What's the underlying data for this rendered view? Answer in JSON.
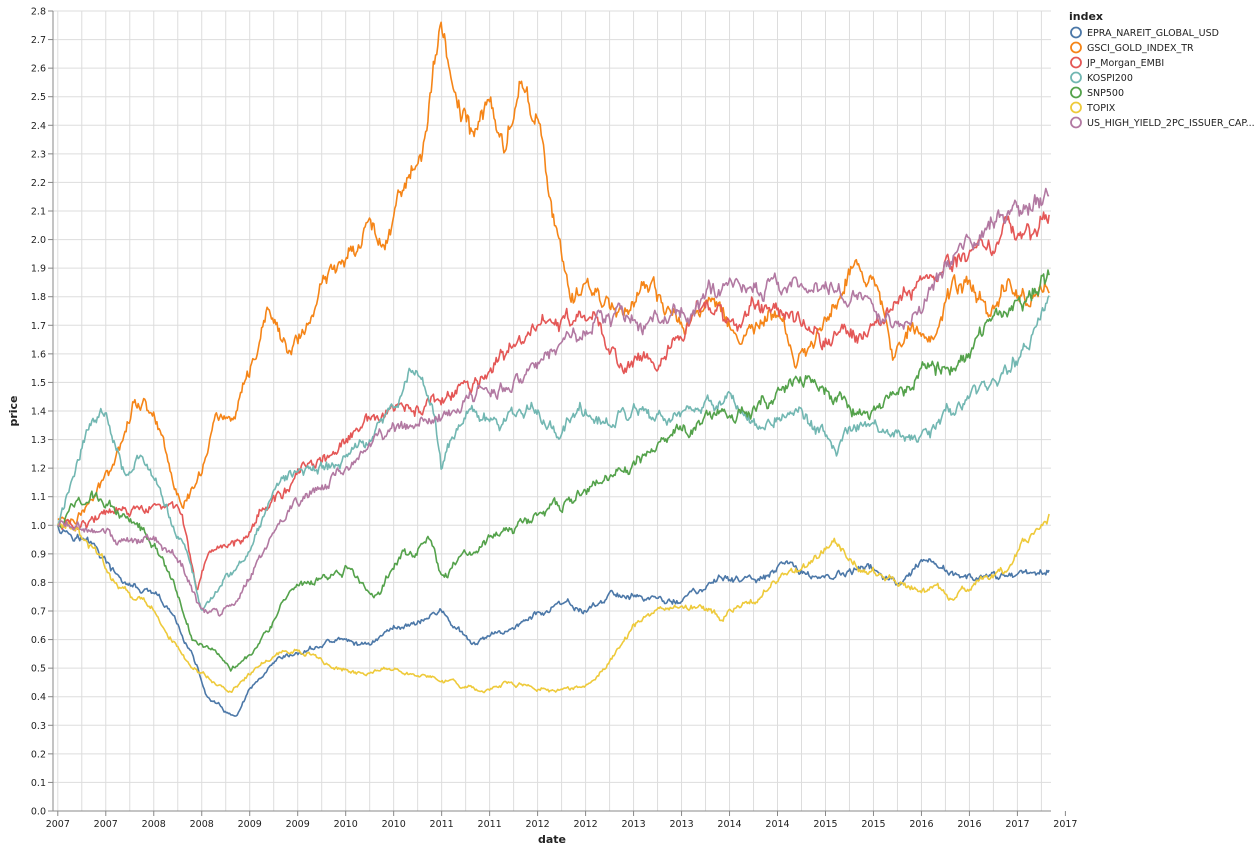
{
  "chart_data": {
    "type": "line",
    "xlabel": "date",
    "ylabel": "price",
    "ylim": [
      0,
      2.8
    ],
    "y_ticks": [
      "0.0",
      "0.1",
      "0.2",
      "0.3",
      "0.4",
      "0.5",
      "0.6",
      "0.7",
      "0.8",
      "0.9",
      "1.0",
      "1.1",
      "1.2",
      "1.3",
      "1.4",
      "1.5",
      "1.6",
      "1.7",
      "1.8",
      "1.9",
      "2.0",
      "2.1",
      "2.2",
      "2.3",
      "2.4",
      "2.5",
      "2.6",
      "2.7",
      "2.8"
    ],
    "x_ticks": [
      "2007",
      "2007",
      "2008",
      "2008",
      "2009",
      "2009",
      "2010",
      "2010",
      "2011",
      "2011",
      "2012",
      "2012",
      "2013",
      "2013",
      "2014",
      "2014",
      "2015",
      "2015",
      "2016",
      "2016",
      "2017",
      "2017"
    ],
    "xlim": [
      2006.95,
      2017.35
    ],
    "grid": true,
    "legend": {
      "title": "index",
      "position": "top-right"
    },
    "series": [
      {
        "name": "EPRA_NAREIT_GLOBAL_USD",
        "color": "#4c78a8",
        "x": [
          2007.0,
          2007.2,
          2007.4,
          2007.6,
          2007.8,
          2008.0,
          2008.2,
          2008.4,
          2008.55,
          2008.7,
          2008.85,
          2009.0,
          2009.3,
          2009.6,
          2009.9,
          2010.2,
          2010.5,
          2010.8,
          2011.0,
          2011.3,
          2011.6,
          2011.9,
          2012.2,
          2012.5,
          2012.8,
          2013.1,
          2013.4,
          2013.7,
          2014.0,
          2014.3,
          2014.6,
          2014.9,
          2015.2,
          2015.5,
          2015.8,
          2016.0,
          2016.3,
          2016.6,
          2016.9,
          2017.2,
          2017.33
        ],
        "y": [
          1.0,
          0.97,
          0.92,
          0.82,
          0.78,
          0.75,
          0.68,
          0.55,
          0.4,
          0.36,
          0.32,
          0.42,
          0.52,
          0.56,
          0.6,
          0.58,
          0.64,
          0.67,
          0.7,
          0.58,
          0.62,
          0.67,
          0.72,
          0.7,
          0.76,
          0.75,
          0.73,
          0.77,
          0.82,
          0.8,
          0.86,
          0.82,
          0.83,
          0.85,
          0.78,
          0.86,
          0.84,
          0.8,
          0.83,
          0.84,
          0.85
        ]
      },
      {
        "name": "GSCI_GOLD_INDEX_TR",
        "color": "#f58518",
        "x": [
          2007.0,
          2007.2,
          2007.4,
          2007.6,
          2007.8,
          2008.0,
          2008.1,
          2008.3,
          2008.5,
          2008.65,
          2008.8,
          2009.0,
          2009.2,
          2009.4,
          2009.6,
          2009.8,
          2010.0,
          2010.2,
          2010.4,
          2010.6,
          2010.8,
          2011.0,
          2011.2,
          2011.35,
          2011.5,
          2011.65,
          2011.8,
          2012.0,
          2012.2,
          2012.35,
          2012.5,
          2012.7,
          2012.9,
          2013.1,
          2013.3,
          2013.5,
          2013.7,
          2013.9,
          2014.1,
          2014.3,
          2014.5,
          2014.7,
          2014.9,
          2015.1,
          2015.3,
          2015.5,
          2015.7,
          2015.9,
          2016.1,
          2016.3,
          2016.5,
          2016.7,
          2016.9,
          2017.1,
          2017.33
        ],
        "y": [
          1.02,
          1.03,
          1.1,
          1.25,
          1.45,
          1.4,
          1.3,
          1.05,
          1.2,
          1.4,
          1.35,
          1.5,
          1.75,
          1.6,
          1.7,
          1.85,
          1.95,
          2.05,
          2.0,
          2.2,
          2.3,
          2.75,
          2.45,
          2.35,
          2.5,
          2.3,
          2.55,
          2.45,
          2.0,
          1.75,
          1.85,
          1.8,
          1.75,
          1.85,
          1.75,
          1.7,
          1.75,
          1.8,
          1.65,
          1.7,
          1.75,
          1.55,
          1.65,
          1.78,
          1.95,
          1.85,
          1.6,
          1.75,
          1.65,
          1.8,
          1.85,
          1.75,
          1.85,
          1.8,
          1.83
        ]
      },
      {
        "name": "JP_Morgan_EMBI",
        "color": "#e45756",
        "x": [
          2007.0,
          2007.3,
          2007.6,
          2007.9,
          2008.1,
          2008.3,
          2008.45,
          2008.55,
          2008.7,
          2008.9,
          2009.1,
          2009.3,
          2009.6,
          2009.9,
          2010.2,
          2010.5,
          2010.8,
          2011.1,
          2011.4,
          2011.7,
          2012.0,
          2012.3,
          2012.6,
          2012.9,
          2013.1,
          2013.3,
          2013.5,
          2013.7,
          2013.9,
          2014.1,
          2014.4,
          2014.7,
          2015.0,
          2015.3,
          2015.6,
          2015.9,
          2016.2,
          2016.5,
          2016.8,
          2017.1,
          2017.33
        ],
        "y": [
          1.0,
          1.02,
          1.04,
          1.05,
          1.06,
          1.05,
          0.75,
          0.85,
          0.92,
          0.95,
          1.05,
          1.1,
          1.2,
          1.25,
          1.35,
          1.4,
          1.4,
          1.45,
          1.5,
          1.6,
          1.7,
          1.72,
          1.7,
          1.55,
          1.6,
          1.6,
          1.65,
          1.75,
          1.75,
          1.72,
          1.78,
          1.75,
          1.65,
          1.68,
          1.72,
          1.85,
          1.9,
          1.95,
          2.0,
          2.05,
          2.06
        ]
      },
      {
        "name": "KOSPI200",
        "color": "#72b7b2",
        "x": [
          2007.0,
          2007.15,
          2007.3,
          2007.5,
          2007.7,
          2007.85,
          2008.0,
          2008.2,
          2008.35,
          2008.5,
          2008.7,
          2008.9,
          2009.1,
          2009.3,
          2009.6,
          2009.9,
          2010.2,
          2010.5,
          2010.7,
          2010.9,
          2011.0,
          2011.1,
          2011.3,
          2011.6,
          2011.9,
          2012.2,
          2012.5,
          2012.8,
          2013.1,
          2013.4,
          2013.7,
          2014.0,
          2014.3,
          2014.6,
          2014.9,
          2015.1,
          2015.3,
          2015.6,
          2015.9,
          2016.2,
          2016.5,
          2016.8,
          2017.1,
          2017.33
        ],
        "y": [
          1.0,
          1.15,
          1.35,
          1.4,
          1.2,
          1.25,
          1.15,
          1.0,
          0.9,
          0.7,
          0.8,
          0.85,
          1.0,
          1.15,
          1.2,
          1.2,
          1.3,
          1.4,
          1.55,
          1.45,
          1.2,
          1.3,
          1.4,
          1.35,
          1.4,
          1.35,
          1.4,
          1.35,
          1.4,
          1.35,
          1.4,
          1.45,
          1.35,
          1.4,
          1.35,
          1.25,
          1.35,
          1.3,
          1.3,
          1.35,
          1.45,
          1.5,
          1.65,
          1.78
        ]
      },
      {
        "name": "SNP500",
        "color": "#54a24b",
        "x": [
          2007.0,
          2007.2,
          2007.4,
          2007.6,
          2007.8,
          2008.0,
          2008.2,
          2008.4,
          2008.6,
          2008.8,
          2009.0,
          2009.2,
          2009.4,
          2009.7,
          2010.0,
          2010.3,
          2010.6,
          2010.9,
          2011.0,
          2011.2,
          2011.5,
          2011.8,
          2012.1,
          2012.4,
          2012.7,
          2013.0,
          2013.3,
          2013.6,
          2013.9,
          2014.2,
          2014.5,
          2014.8,
          2015.1,
          2015.3,
          2015.6,
          2015.9,
          2016.1,
          2016.4,
          2016.7,
          2017.0,
          2017.33
        ],
        "y": [
          1.0,
          1.08,
          1.1,
          1.05,
          1.02,
          0.95,
          0.8,
          0.6,
          0.58,
          0.5,
          0.55,
          0.65,
          0.75,
          0.8,
          0.85,
          0.75,
          0.9,
          0.95,
          0.82,
          0.88,
          0.95,
          1.0,
          1.05,
          1.1,
          1.15,
          1.2,
          1.3,
          1.35,
          1.4,
          1.4,
          1.45,
          1.5,
          1.45,
          1.4,
          1.4,
          1.5,
          1.55,
          1.6,
          1.7,
          1.75,
          1.87
        ]
      },
      {
        "name": "TOPIX",
        "color": "#eeca3b",
        "x": [
          2007.0,
          2007.2,
          2007.4,
          2007.6,
          2007.8,
          2008.0,
          2008.2,
          2008.4,
          2008.6,
          2008.8,
          2009.0,
          2009.3,
          2009.6,
          2009.9,
          2010.2,
          2010.5,
          2010.8,
          2011.1,
          2011.4,
          2011.7,
          2012.0,
          2012.3,
          2012.6,
          2012.8,
          2013.0,
          2013.3,
          2013.6,
          2013.9,
          2014.2,
          2014.5,
          2014.8,
          2015.1,
          2015.4,
          2015.7,
          2016.0,
          2016.3,
          2016.6,
          2016.9,
          2017.1,
          2017.33
        ],
        "y": [
          1.0,
          0.98,
          0.9,
          0.8,
          0.75,
          0.7,
          0.6,
          0.5,
          0.45,
          0.42,
          0.48,
          0.55,
          0.55,
          0.5,
          0.48,
          0.5,
          0.47,
          0.45,
          0.42,
          0.45,
          0.43,
          0.42,
          0.45,
          0.55,
          0.65,
          0.7,
          0.72,
          0.68,
          0.72,
          0.8,
          0.85,
          0.95,
          0.85,
          0.8,
          0.78,
          0.75,
          0.8,
          0.85,
          0.95,
          1.03
        ]
      },
      {
        "name": "US_HIGH_YIELD_2PC_ISSUER_CAP...",
        "color": "#b279a2",
        "x": [
          2007.0,
          2007.3,
          2007.6,
          2007.9,
          2008.1,
          2008.3,
          2008.5,
          2008.7,
          2008.9,
          2009.1,
          2009.3,
          2009.6,
          2009.9,
          2010.2,
          2010.5,
          2010.8,
          2011.1,
          2011.4,
          2011.7,
          2012.0,
          2012.3,
          2012.6,
          2012.9,
          2013.1,
          2013.4,
          2013.7,
          2014.0,
          2014.3,
          2014.6,
          2014.9,
          2015.2,
          2015.5,
          2015.8,
          2016.1,
          2016.4,
          2016.7,
          2017.0,
          2017.33
        ],
        "y": [
          1.0,
          0.98,
          0.96,
          0.95,
          0.92,
          0.85,
          0.7,
          0.68,
          0.75,
          0.9,
          1.0,
          1.1,
          1.18,
          1.25,
          1.32,
          1.35,
          1.4,
          1.45,
          1.5,
          1.55,
          1.65,
          1.7,
          1.72,
          1.7,
          1.72,
          1.78,
          1.85,
          1.82,
          1.85,
          1.85,
          1.8,
          1.75,
          1.7,
          1.85,
          1.95,
          2.05,
          2.1,
          2.16
        ]
      }
    ]
  }
}
